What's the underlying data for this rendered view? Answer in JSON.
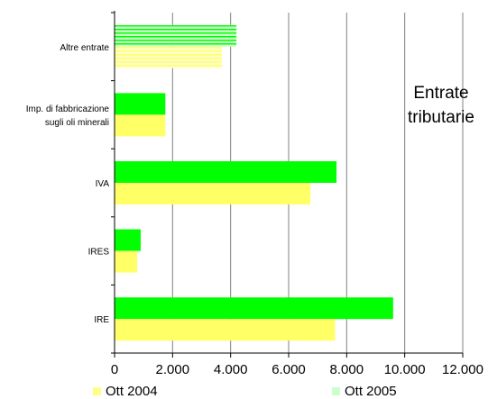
{
  "chart_data": {
    "type": "bar",
    "orientation": "horizontal",
    "title_lines": [
      "Entrate",
      "tributarie"
    ],
    "categories": [
      "Altre entrate",
      "Imp. di fabbricazione sugli oli minerali",
      "IVA",
      "IRES",
      "IRE"
    ],
    "category_label_lines": [
      [
        "Altre entrate"
      ],
      [
        "Imp. di fabbricazione",
        "sugli oli minerali"
      ],
      [
        "IVA"
      ],
      [
        "IRES"
      ],
      [
        "IRE"
      ]
    ],
    "series": [
      {
        "name": "Ott 2004",
        "color": "#ffff66",
        "values": [
          3700,
          1750,
          6750,
          780,
          7600
        ]
      },
      {
        "name": "Ott 2005",
        "color": "#00ff00",
        "values": [
          4200,
          1750,
          7650,
          900,
          9600
        ]
      }
    ],
    "highlight_category": "Altre entrate",
    "xlim": [
      0,
      12000
    ],
    "xticks": [
      0,
      2000,
      4000,
      6000,
      8000,
      10000,
      12000
    ],
    "xtick_labels": [
      "0",
      "2.000",
      "4.000",
      "6.000",
      "8.000",
      "10.000",
      "12.000"
    ],
    "grid": "vertical",
    "legend_position": "bottom"
  }
}
